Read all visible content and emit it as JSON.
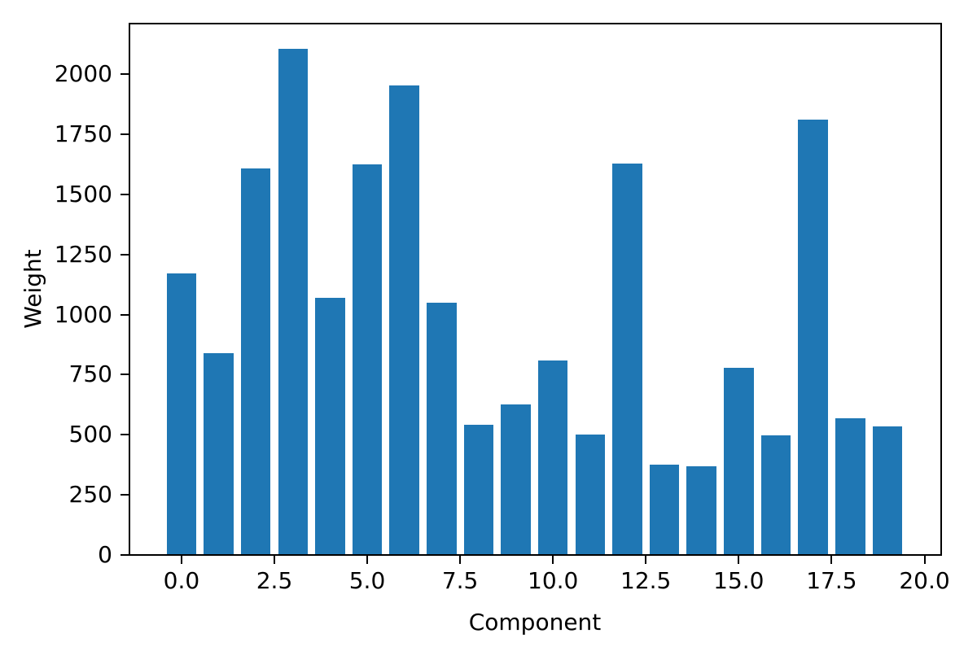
{
  "chart_data": {
    "type": "bar",
    "title": "",
    "xlabel": "Component",
    "ylabel": "Weight",
    "categories": [
      0,
      1,
      2,
      3,
      4,
      5,
      6,
      7,
      8,
      9,
      10,
      11,
      12,
      13,
      14,
      15,
      16,
      17,
      18,
      19
    ],
    "values": [
      1170,
      838,
      1608,
      2105,
      1069,
      1626,
      1952,
      1050,
      542,
      625,
      810,
      500,
      1627,
      377,
      370,
      780,
      496,
      1810,
      570,
      535
    ],
    "bar_width": 0.8,
    "bar_color": "#1f77b4",
    "axis_color": "#000000",
    "xlim": [
      -1.4,
      20.45
    ],
    "ylim": [
      0,
      2210
    ],
    "xticks": {
      "positions": [
        0,
        2.5,
        5,
        7.5,
        10,
        12.5,
        15,
        17.5,
        20
      ],
      "labels": [
        "0.0",
        "2.5",
        "5.0",
        "7.5",
        "10.0",
        "12.5",
        "15.0",
        "17.5",
        "20.0"
      ]
    },
    "yticks": {
      "positions": [
        0,
        250,
        500,
        750,
        1000,
        1250,
        1500,
        1750,
        2000
      ],
      "labels": [
        "0",
        "250",
        "500",
        "750",
        "1000",
        "1250",
        "1500",
        "1750",
        "2000"
      ]
    },
    "grid": false,
    "legend": "none"
  }
}
